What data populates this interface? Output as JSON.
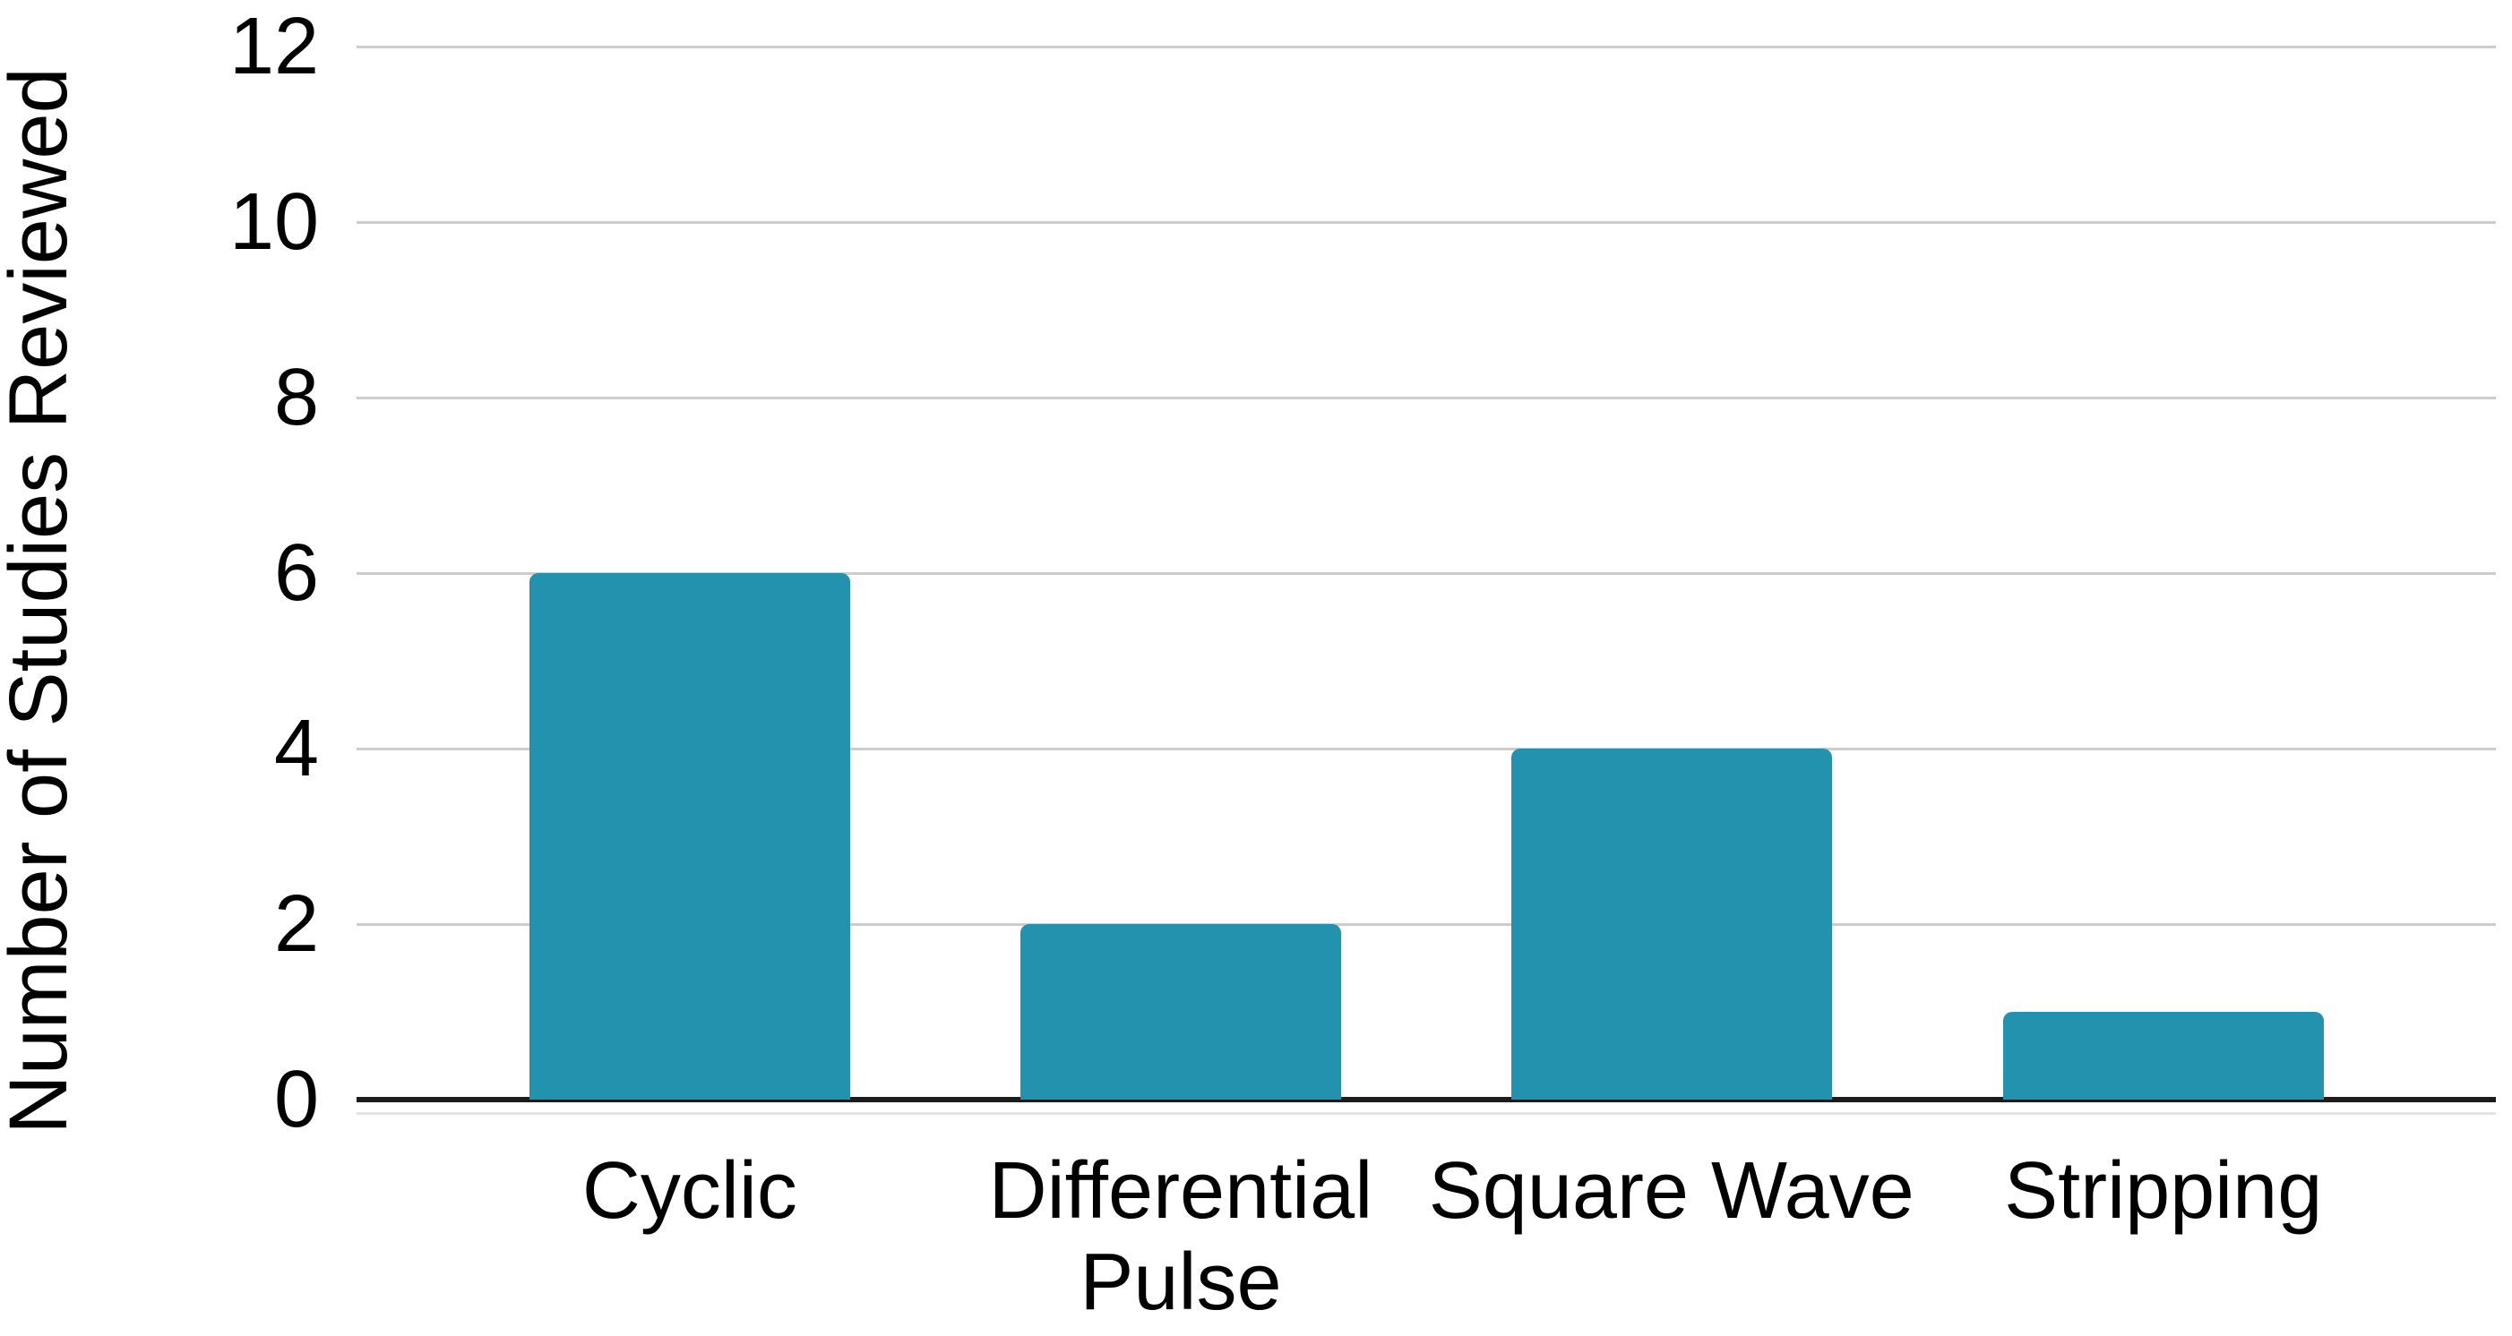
{
  "chart_data": {
    "type": "bar",
    "categories": [
      "Cyclic",
      "Differential Pulse",
      "Square Wave",
      "Stripping"
    ],
    "values": [
      6,
      2,
      4,
      1
    ],
    "ylabel": "Number of Studies Reviewed",
    "xlabel": "",
    "yticks": [
      0,
      2,
      4,
      6,
      8,
      10,
      12
    ],
    "ylim": [
      0,
      12
    ],
    "layout": {
      "grid": true,
      "legend": "none",
      "bar_corner_rounding": "top"
    },
    "colors": {
      "bar": "#2292ae",
      "gridline": "#cccccc",
      "axis_line": "#1c1c1c",
      "text": "#000000",
      "background": "#ffffff"
    }
  }
}
